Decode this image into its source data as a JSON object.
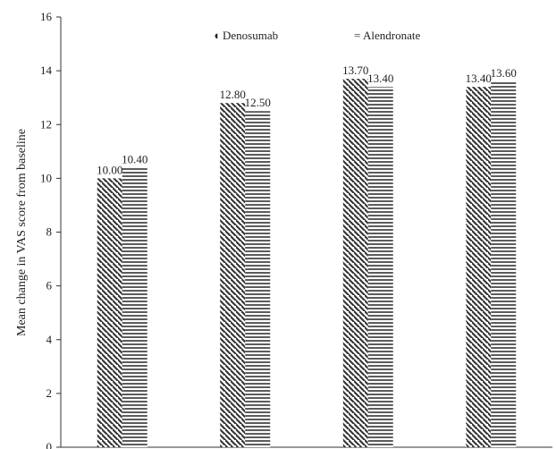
{
  "chart_data": {
    "type": "bar",
    "title": "",
    "xlabel": "",
    "ylabel": "Mean change in VAS score from baseline",
    "categories": [
      "",
      "",
      "",
      ""
    ],
    "series": [
      {
        "name": "Denosumab",
        "values": [
          10.0,
          12.8,
          13.7,
          13.4
        ],
        "labels": [
          "10.00",
          "12.80",
          "13.70",
          "13.40"
        ],
        "pattern": "diagonal-hatch"
      },
      {
        "name": "Alendronate",
        "values": [
          10.4,
          12.5,
          13.4,
          13.6
        ],
        "labels": [
          "10.40",
          "12.50",
          "13.40",
          "13.60"
        ],
        "pattern": "horizontal-hatch"
      }
    ],
    "ylim": [
      0,
      16
    ],
    "yticks": [
      0,
      2,
      4,
      6,
      8,
      10,
      12,
      14,
      16
    ],
    "grid": false,
    "legend_position": "top-center",
    "legend_markers": [
      "◖",
      "="
    ],
    "colors": {
      "ink": "#333333",
      "background": "#ffffff"
    }
  }
}
